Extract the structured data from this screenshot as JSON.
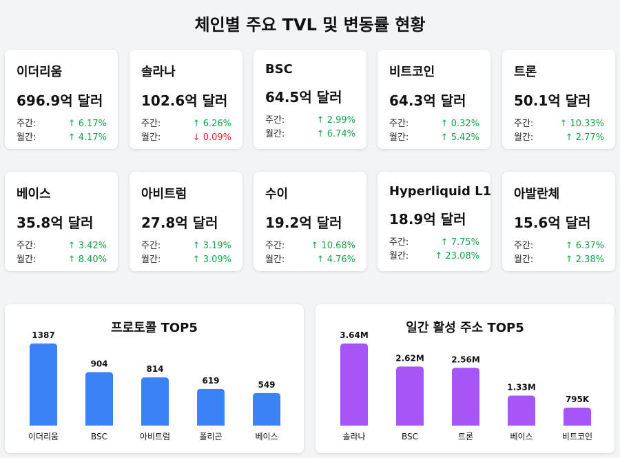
{
  "page": {
    "title": "체인별 주요 TVL 및 변동률 현황"
  },
  "labels": {
    "weekly": "주간:",
    "monthly": "월간:"
  },
  "colors": {
    "up": "#16a34a",
    "down": "#dc2626",
    "protocol_bar": "#3b82f6",
    "address_bar": "#a855f7"
  },
  "cards": [
    {
      "name": "이더리움",
      "tvl": "696.9억 달러",
      "weekly": {
        "text": "↑ 6.17%",
        "dir": "up"
      },
      "monthly": {
        "text": "↑ 4.17%",
        "dir": "up"
      }
    },
    {
      "name": "솔라나",
      "tvl": "102.6억 달러",
      "weekly": {
        "text": "↑ 6.26%",
        "dir": "up"
      },
      "monthly": {
        "text": "↓ 0.09%",
        "dir": "down"
      }
    },
    {
      "name": "BSC",
      "tvl": "64.5억 달러",
      "weekly": {
        "text": "↑ 2.99%",
        "dir": "up"
      },
      "monthly": {
        "text": "↑ 6.74%",
        "dir": "up"
      }
    },
    {
      "name": "비트코인",
      "tvl": "64.3억 달러",
      "weekly": {
        "text": "↑ 0.32%",
        "dir": "up"
      },
      "monthly": {
        "text": "↑ 5.42%",
        "dir": "up"
      }
    },
    {
      "name": "트론",
      "tvl": "50.1억 달러",
      "weekly": {
        "text": "↑ 10.33%",
        "dir": "up"
      },
      "monthly": {
        "text": "↑ 2.77%",
        "dir": "up"
      }
    },
    {
      "name": "베이스",
      "tvl": "35.8억 달러",
      "weekly": {
        "text": "↑ 3.42%",
        "dir": "up"
      },
      "monthly": {
        "text": "↑ 8.40%",
        "dir": "up"
      }
    },
    {
      "name": "아비트럼",
      "tvl": "27.8억 달러",
      "weekly": {
        "text": "↑ 3.19%",
        "dir": "up"
      },
      "monthly": {
        "text": "↑ 3.09%",
        "dir": "up"
      }
    },
    {
      "name": "수이",
      "tvl": "19.2억 달러",
      "weekly": {
        "text": "↑ 10.68%",
        "dir": "up"
      },
      "monthly": {
        "text": "↑ 4.76%",
        "dir": "up"
      }
    },
    {
      "name": "Hyperliquid L1",
      "tvl": "18.9억 달러",
      "weekly": {
        "text": "↑ 7.75%",
        "dir": "up"
      },
      "monthly": {
        "text": "↑ 23.08%",
        "dir": "up"
      }
    },
    {
      "name": "아발란체",
      "tvl": "15.6억 달러",
      "weekly": {
        "text": "↑ 6.37%",
        "dir": "up"
      },
      "monthly": {
        "text": "↑ 2.38%",
        "dir": "up"
      }
    }
  ],
  "chart_data": [
    {
      "type": "bar",
      "title": "프로토콜 TOP5",
      "xlabel": "",
      "ylabel": "",
      "categories": [
        "이더리움",
        "BSC",
        "아비트럼",
        "폴리곤",
        "베이스"
      ],
      "values": [
        1387,
        904,
        814,
        619,
        549
      ],
      "value_labels": [
        "1387",
        "904",
        "814",
        "619",
        "549"
      ],
      "ylim": [
        0,
        1387
      ],
      "grid": false,
      "color": "#3b82f6"
    },
    {
      "type": "bar",
      "title": "일간 활성 주소 TOP5",
      "xlabel": "",
      "ylabel": "",
      "categories": [
        "솔라나",
        "BSC",
        "트론",
        "베이스",
        "비트코인"
      ],
      "values": [
        3640000,
        2620000,
        2560000,
        1330000,
        795000
      ],
      "value_labels": [
        "3.64M",
        "2.62M",
        "2.56M",
        "1.33M",
        "795K"
      ],
      "ylim": [
        0,
        3640000
      ],
      "grid": false,
      "color": "#a855f7"
    }
  ]
}
